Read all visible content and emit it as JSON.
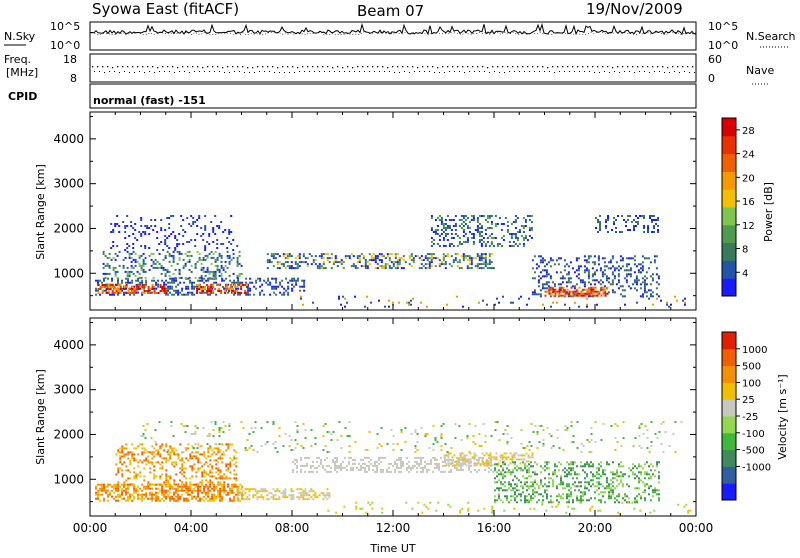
{
  "header": {
    "station": "Syowa East (fitACF)",
    "beam": "Beam 07",
    "date": "19/Nov/2009"
  },
  "noise_panel": {
    "left_label": "N.Sky",
    "right_label": "N.Search",
    "top_tick_left": "10^5",
    "bottom_tick_left": "10^0",
    "top_tick_right": "10^5",
    "bottom_tick_right": "10^0"
  },
  "freq_panel": {
    "left_label_1": "Freq.",
    "left_label_2": "[MHz]",
    "left_top": "18",
    "left_bottom": "8",
    "right_label": "Nave",
    "right_top": "60",
    "right_bottom": "0"
  },
  "cpid": {
    "label": "CPID",
    "value": "normal (fast) -151"
  },
  "colors": {
    "power_scale": [
      "#1a1aff",
      "#2255aa",
      "#3a7a5a",
      "#4f9a4f",
      "#7fc64f",
      "#f2c000",
      "#f59a00",
      "#f06000",
      "#e83000",
      "#d80000"
    ],
    "velocity_scale": [
      "#1a1aff",
      "#2f5fa0",
      "#3f8a5c",
      "#3fb83f",
      "#8fd84f",
      "#c8c8c0",
      "#f0c000",
      "#f59000",
      "#f06000",
      "#e02000"
    ]
  },
  "chart_data": [
    {
      "type": "heatmap",
      "panel": "power",
      "xlabel": "Time UT",
      "ylabel": "Slant Range [km]",
      "x_ticks": [
        "00:00",
        "04:00",
        "08:00",
        "12:00",
        "16:00",
        "20:00",
        "00:00"
      ],
      "y_ticks": [
        "1000",
        "2000",
        "3000",
        "4000"
      ],
      "xlim_hours": [
        0,
        24
      ],
      "ylim_km": [
        180,
        4600
      ],
      "colorbar": {
        "label": "Power [dB]",
        "ticks": [
          "4",
          "8",
          "12",
          "16",
          "20",
          "24",
          "28"
        ],
        "range": [
          0,
          30
        ]
      }
    },
    {
      "type": "heatmap",
      "panel": "velocity",
      "xlabel": "Time UT",
      "ylabel": "Slant Range [km]",
      "x_ticks": [
        "00:00",
        "04:00",
        "08:00",
        "12:00",
        "16:00",
        "20:00",
        "00:00"
      ],
      "y_ticks": [
        "1000",
        "2000",
        "3000",
        "4000"
      ],
      "xlim_hours": [
        0,
        24
      ],
      "ylim_km": [
        180,
        4600
      ],
      "colorbar": {
        "label": "Velocity [m s⁻¹]",
        "ticks": [
          "1000",
          "500",
          "100",
          "25",
          "-25",
          "-100",
          "-500",
          "-1000"
        ]
      }
    }
  ],
  "xaxis_label": "Time UT"
}
